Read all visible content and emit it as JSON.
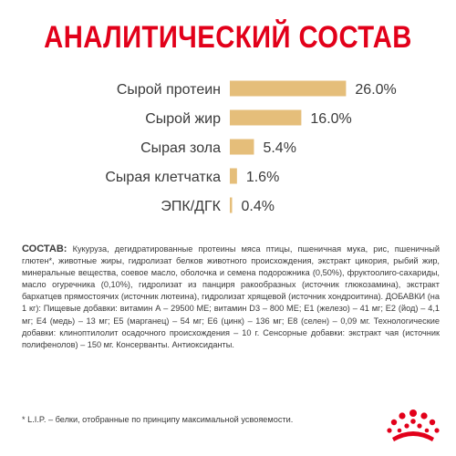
{
  "title": "АНАЛИТИЧЕСКИЙ СОСТАВ",
  "chart_data": {
    "type": "bar",
    "orientation": "horizontal",
    "categories": [
      "Сырой протеин",
      "Сырой жир",
      "Сырая зола",
      "Сырая клетчатка",
      "ЭПК/ДГК"
    ],
    "values": [
      26.0,
      16.0,
      5.4,
      1.6,
      0.4
    ],
    "value_labels": [
      "26.0%",
      "16.0%",
      "5.4%",
      "1.6%",
      "0.4%"
    ],
    "unit": "%",
    "bar_color": "#e5be7a",
    "grid": false,
    "legend": "none"
  },
  "composition": {
    "label": "СОСТАВ:",
    "text": " Кукуруза, дегидратированные протеины мяса птицы, пшеничная мука, рис, пшеничный глютен*, животные жиры, гидролизат белков животного происхождения, экстракт цикория, рыбий жир, минеральные вещества, соевое масло, оболочка и семена подорожника (0,50%), фруктоолиго-сахариды, масло огуречника (0,10%), гидролизат из панциря ракообразных (источник глюкозамина), экстракт бархатцев прямостоячих (источник лютеина), гидролизат хрящевой (источник хондроитина). ДОБАВКИ (на 1 кг): Пищевые добавки: витамин А – 29500 МЕ; витамин D3 – 800 МЕ; Е1 (железо) – 41 мг; Е2 (йод) – 4,1 мг; Е4 (медь) – 13 мг; Е5 (марганец) – 54 мг; Е6 (цинк) – 136 мг; Е8 (селен) – 0,09 мг. Технологические добавки: клиноптилолит осадочного происхождения – 10 г. Сенсорные добавки: экстракт чая (источник полифенолов) – 150 мг. Консерванты. Антиоксиданты."
  },
  "footnote": "* L.I.P. – белки, отобранные по принципу максимальной усвояемости.",
  "colors": {
    "brand_red": "#e2001a",
    "text": "#3a3a3a"
  },
  "logo": "royal-canin-crown-logo"
}
